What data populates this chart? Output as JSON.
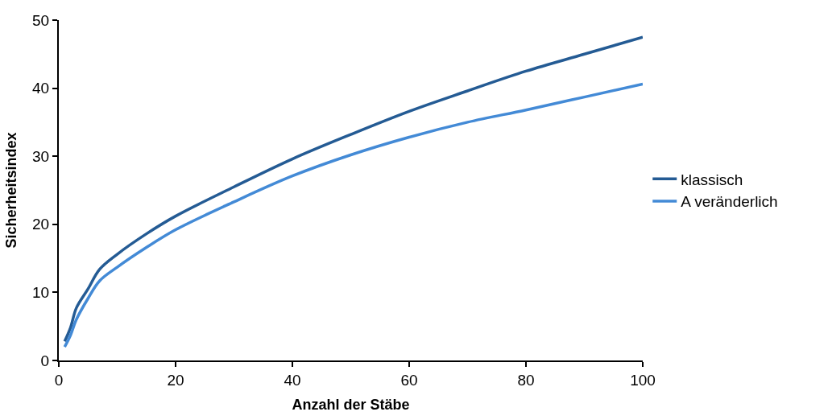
{
  "chart_data": {
    "type": "line",
    "xlabel": "Anzahl der Stäbe",
    "ylabel": "Sicherheitsindex",
    "x": [
      1,
      2,
      3,
      5,
      7,
      10,
      15,
      20,
      30,
      40,
      50,
      60,
      70,
      80,
      90,
      100
    ],
    "series": [
      {
        "name": "klassisch",
        "color": "#245b94",
        "values": [
          2.8,
          4.8,
          7.7,
          10.5,
          13.4,
          15.6,
          18.6,
          21.2,
          25.5,
          29.6,
          33.2,
          36.6,
          39.6,
          42.5,
          45.0,
          47.5
        ]
      },
      {
        "name": "A veränderlich",
        "color": "#438ad6",
        "values": [
          2.0,
          3.7,
          6.0,
          9.1,
          11.7,
          13.7,
          16.6,
          19.2,
          23.3,
          27.1,
          30.2,
          32.8,
          35.0,
          36.8,
          38.7,
          40.6
        ]
      }
    ],
    "xlim": [
      0,
      100
    ],
    "xticks": [
      0,
      20,
      40,
      60,
      80,
      100
    ],
    "ylim": [
      0,
      50
    ],
    "yticks": [
      0,
      10,
      20,
      30,
      40,
      50
    ],
    "legend": "right",
    "marker": "none",
    "line_style": "solid"
  }
}
